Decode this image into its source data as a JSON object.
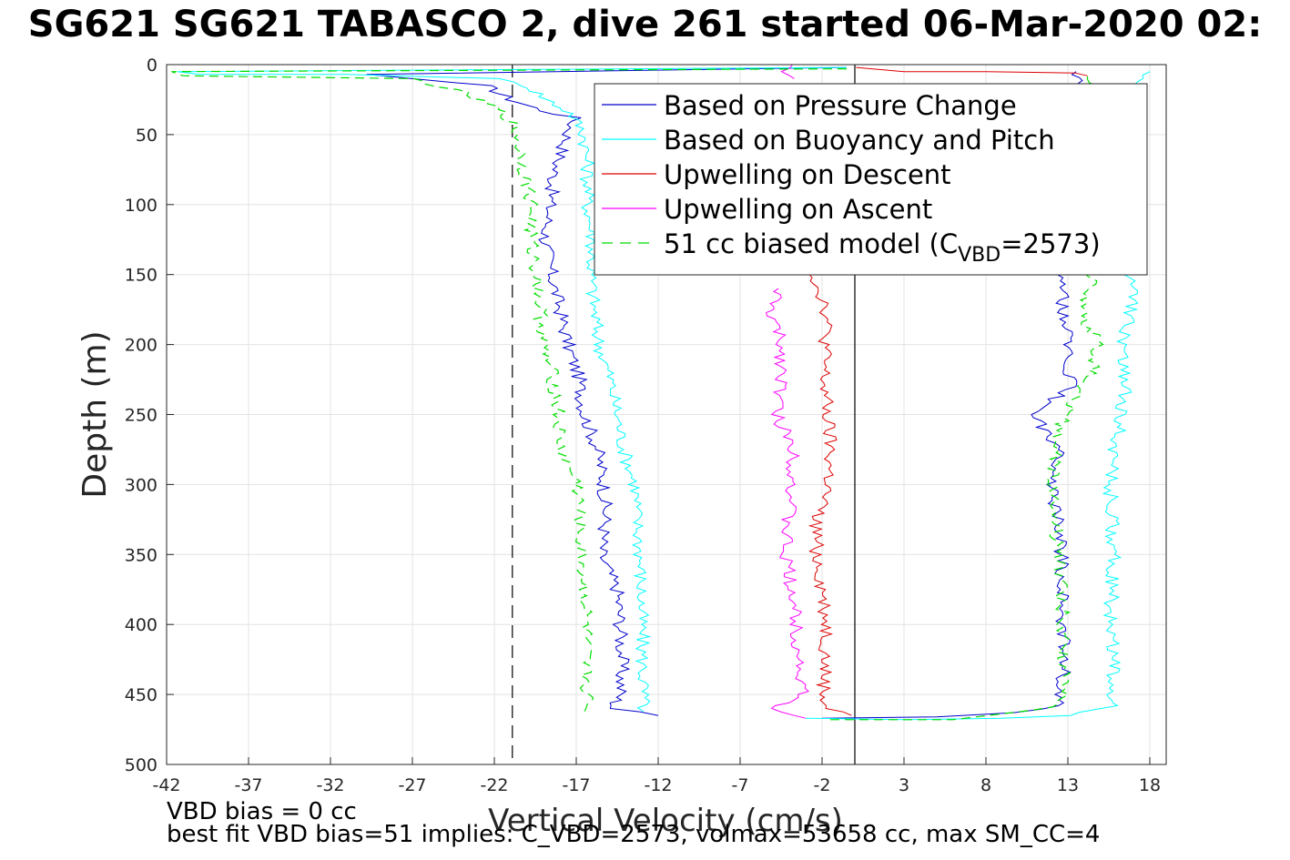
{
  "title": "SG621 SG621 TABASCO 2, dive 261 started 06-Mar-2020 02:",
  "notes": {
    "line1": "VBD bias = 0 cc",
    "line2": "best fit VBD bias=51 implies: C_VBD=2573, volmax=53658 cc, max SM_CC=4"
  },
  "chart_data": {
    "type": "line",
    "title": "SG621 SG621 TABASCO 2, dive 261 started 06-Mar-2020 02:",
    "xlabel": "Vertical Velocity (cm/s)",
    "ylabel": "Depth (m)",
    "xlim": [
      -42,
      19
    ],
    "ylim": [
      500,
      0
    ],
    "y_reversed": true,
    "grid": true,
    "legend_position": "top-right",
    "xticks": [
      -42,
      -37,
      -32,
      -27,
      -22,
      -17,
      -12,
      -7,
      -2,
      3,
      8,
      13,
      18
    ],
    "yticks": [
      0,
      50,
      100,
      150,
      200,
      250,
      300,
      350,
      400,
      450,
      500
    ],
    "reference_lines": [
      {
        "axis": "x",
        "value": 0,
        "style": "solid",
        "color": "#000000"
      },
      {
        "axis": "x",
        "value": -20.9,
        "style": "dashed",
        "color": "#000000"
      }
    ],
    "legend": [
      {
        "label": "Based on Pressure Change",
        "color": "#0000cc",
        "dash": false
      },
      {
        "label": "Based on Buoyancy and Pitch",
        "color": "#00ffff",
        "dash": false
      },
      {
        "label": "Upwelling on Descent",
        "color": "#dd0000",
        "dash": false
      },
      {
        "label": "Upwelling on Ascent",
        "color": "#ff00ff",
        "dash": false
      },
      {
        "label": "51 cc biased model (C",
        "sub": "VBD",
        "tail": "=2573)",
        "color": "#00dd00",
        "dash": true
      }
    ],
    "series": [
      {
        "name": "Based on Pressure Change",
        "color": "#0000cc",
        "descent": [
          [
            -0.5,
            2
          ],
          [
            -29.8,
            7
          ],
          [
            -22.5,
            15
          ],
          [
            -21,
            25
          ],
          [
            -19,
            33
          ],
          [
            -17.1,
            38
          ],
          [
            -17.5,
            50
          ],
          [
            -18.3,
            75
          ],
          [
            -18.6,
            100
          ],
          [
            -18.9,
            125
          ],
          [
            -18.5,
            150
          ],
          [
            -18,
            175
          ],
          [
            -17.5,
            200
          ],
          [
            -16.8,
            225
          ],
          [
            -16.5,
            250
          ],
          [
            -15.7,
            275
          ],
          [
            -15.3,
            300
          ],
          [
            -15.2,
            325
          ],
          [
            -15.5,
            350
          ],
          [
            -14.5,
            375
          ],
          [
            -14.3,
            400
          ],
          [
            -14.2,
            425
          ],
          [
            -14.3,
            450
          ],
          [
            -14.8,
            460
          ],
          [
            -12,
            465
          ]
        ],
        "ascent": [
          [
            -2,
            467
          ],
          [
            5,
            466
          ],
          [
            10,
            463
          ],
          [
            12.3,
            458
          ],
          [
            12.6,
            450
          ],
          [
            12.8,
            425
          ],
          [
            12.7,
            400
          ],
          [
            12.7,
            375
          ],
          [
            12.6,
            350
          ],
          [
            12.3,
            325
          ],
          [
            12.1,
            300
          ],
          [
            12.4,
            275
          ],
          [
            10.9,
            250
          ],
          [
            13.2,
            230
          ],
          [
            13,
            200
          ],
          [
            12.6,
            175
          ],
          [
            12.8,
            150
          ],
          [
            13.5,
            100
          ],
          [
            13.7,
            50
          ],
          [
            13.5,
            20
          ],
          [
            13.5,
            5
          ]
        ]
      },
      {
        "name": "Based on Buoyancy and Pitch",
        "color": "#00ffff",
        "descent": [
          [
            -0.5,
            2
          ],
          [
            -41,
            5
          ],
          [
            -40,
            7
          ],
          [
            -31,
            7
          ],
          [
            -22,
            10
          ],
          [
            -20,
            15
          ],
          [
            -18.8,
            25
          ],
          [
            -17.3,
            35
          ],
          [
            -16.5,
            50
          ],
          [
            -16.3,
            75
          ],
          [
            -16.3,
            100
          ],
          [
            -16,
            125
          ],
          [
            -16.1,
            150
          ],
          [
            -15.9,
            175
          ],
          [
            -15.6,
            200
          ],
          [
            -14.9,
            225
          ],
          [
            -14.5,
            250
          ],
          [
            -14.1,
            275
          ],
          [
            -13.4,
            300
          ],
          [
            -13.3,
            325
          ],
          [
            -13.1,
            350
          ],
          [
            -13,
            400
          ],
          [
            -12.9,
            450
          ],
          [
            -12.9,
            462
          ]
        ],
        "ascent": [
          [
            -3,
            467
          ],
          [
            3,
            468
          ],
          [
            9,
            467
          ],
          [
            13,
            465
          ],
          [
            15.7,
            458
          ],
          [
            15.7,
            450
          ],
          [
            15.8,
            425
          ],
          [
            15.6,
            400
          ],
          [
            15.8,
            350
          ],
          [
            15.6,
            300
          ],
          [
            15.8,
            275
          ],
          [
            16.3,
            250
          ],
          [
            16.5,
            225
          ],
          [
            16.4,
            200
          ],
          [
            16.9,
            175
          ],
          [
            16.8,
            150
          ],
          [
            17,
            100
          ],
          [
            17.3,
            50
          ],
          [
            17.3,
            10
          ],
          [
            18,
            5
          ]
        ]
      },
      {
        "name": "Upwelling on Descent",
        "color": "#dd0000",
        "values": [
          [
            -0.3,
            2
          ],
          [
            3,
            5
          ],
          [
            8,
            5
          ],
          [
            13.5,
            6
          ],
          [
            14.2,
            8
          ]
        ],
        "values_lower": [
          [
            -2.5,
            150
          ],
          [
            -1.7,
            175
          ],
          [
            -1.8,
            200
          ],
          [
            -1.9,
            225
          ],
          [
            -1.7,
            250
          ],
          [
            -1.5,
            275
          ],
          [
            -1.6,
            300
          ],
          [
            -2.4,
            325
          ],
          [
            -2.3,
            350
          ],
          [
            -2,
            375
          ],
          [
            -1.7,
            400
          ],
          [
            -1.8,
            425
          ],
          [
            -1.9,
            450
          ],
          [
            -1.7,
            460
          ],
          [
            -0.2,
            465
          ]
        ]
      },
      {
        "name": "Upwelling on Ascent",
        "color": "#ff00ff",
        "values": [
          [
            -3.5,
            0
          ],
          [
            -4.2,
            5
          ],
          [
            -3.7,
            10
          ]
        ],
        "values_lower": [
          [
            -4.6,
            160
          ],
          [
            -5.2,
            175
          ],
          [
            -4.5,
            200
          ],
          [
            -4.4,
            225
          ],
          [
            -4.8,
            250
          ],
          [
            -3.7,
            275
          ],
          [
            -3.8,
            300
          ],
          [
            -4.1,
            325
          ],
          [
            -4.3,
            350
          ],
          [
            -3.8,
            375
          ],
          [
            -3.6,
            400
          ],
          [
            -3.4,
            425
          ],
          [
            -3.2,
            450
          ],
          [
            -5.2,
            460
          ],
          [
            -3,
            467
          ]
        ]
      },
      {
        "name": "51 cc biased model (CVBD=2573)",
        "color": "#00dd00",
        "descent": [
          [
            -0.5,
            3
          ],
          [
            -42,
            5
          ],
          [
            -41,
            8
          ],
          [
            -27,
            10
          ],
          [
            -24,
            20
          ],
          [
            -22,
            30
          ],
          [
            -21,
            40
          ],
          [
            -20.6,
            50
          ],
          [
            -20.2,
            75
          ],
          [
            -19.7,
            100
          ],
          [
            -19.8,
            125
          ],
          [
            -19.4,
            150
          ],
          [
            -19.2,
            175
          ],
          [
            -19,
            200
          ],
          [
            -18.4,
            225
          ],
          [
            -18.1,
            250
          ],
          [
            -18,
            275
          ],
          [
            -16.9,
            300
          ],
          [
            -16.8,
            325
          ],
          [
            -16.7,
            350
          ],
          [
            -16.5,
            375
          ],
          [
            -16.4,
            400
          ],
          [
            -16.5,
            425
          ],
          [
            -16.3,
            450
          ],
          [
            -16.5,
            462
          ]
        ],
        "ascent": [
          [
            -1.5,
            468
          ],
          [
            6,
            468
          ],
          [
            12.4,
            459
          ],
          [
            12.7,
            450
          ],
          [
            12.7,
            400
          ],
          [
            12.4,
            350
          ],
          [
            12.2,
            300
          ],
          [
            12.2,
            275
          ],
          [
            12.8,
            250
          ],
          [
            14.3,
            225
          ],
          [
            14.8,
            200
          ],
          [
            13.8,
            175
          ],
          [
            14.5,
            150
          ],
          [
            14.7,
            100
          ],
          [
            14.9,
            50
          ],
          [
            14.6,
            15
          ],
          [
            14.2,
            8
          ]
        ]
      }
    ]
  }
}
